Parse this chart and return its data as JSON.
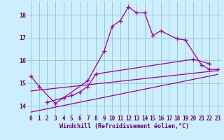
{
  "background_color": "#cceeff",
  "grid_color": "#99cccc",
  "line_color": "#990099",
  "xlim": [
    -0.5,
    23.5
  ],
  "ylim": [
    13.6,
    18.6
  ],
  "xlabel": "Windchill (Refroidissement éolien,°C)",
  "yticks": [
    14,
    15,
    16,
    17,
    18
  ],
  "xticks": [
    0,
    1,
    2,
    3,
    4,
    5,
    6,
    7,
    8,
    9,
    10,
    11,
    12,
    13,
    14,
    15,
    16,
    17,
    18,
    19,
    20,
    21,
    22,
    23
  ],
  "series1_x": [
    0,
    1,
    3,
    7,
    9,
    10,
    11,
    12,
    13,
    14,
    15,
    16,
    18,
    19,
    21,
    22,
    23
  ],
  "series1_y": [
    15.3,
    14.85,
    14.1,
    15.1,
    16.4,
    17.5,
    17.75,
    18.35,
    18.1,
    18.1,
    17.1,
    17.3,
    16.95,
    16.9,
    15.8,
    15.6,
    15.6
  ],
  "series2_x": [
    2,
    4,
    5,
    6,
    7,
    8,
    20,
    22
  ],
  "series2_y": [
    14.15,
    14.35,
    14.45,
    14.6,
    14.85,
    15.4,
    16.05,
    15.85
  ],
  "line1_x": [
    0,
    23
  ],
  "line1_y": [
    14.65,
    15.55
  ],
  "line2_x": [
    0,
    23
  ],
  "line2_y": [
    13.72,
    15.38
  ]
}
